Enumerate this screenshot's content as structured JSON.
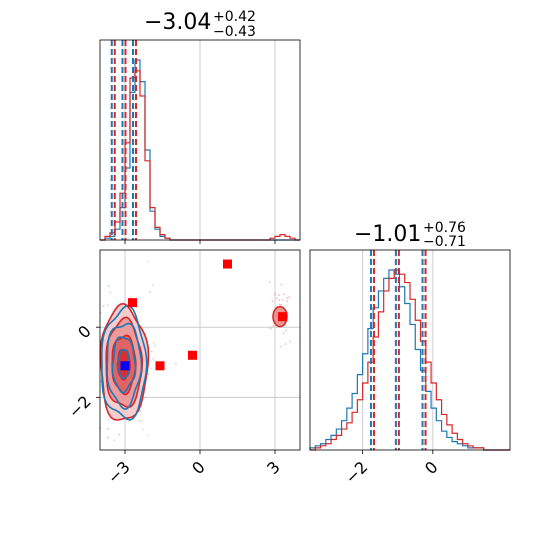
{
  "chart_data": {
    "type": "corner",
    "colors": {
      "series_a": "#1f77b4",
      "series_b": "#d62728",
      "grid": "#cccccc"
    },
    "series": [
      {
        "color": "#1f77b4"
      },
      {
        "color": "#d62728"
      }
    ],
    "grid": true,
    "parameters": [
      {
        "title": {
          "main": "−3.04",
          "sup": "+0.42",
          "sub": "−0.43"
        },
        "range": [
          -4.0,
          4.0
        ],
        "ticks": [
          -3,
          0,
          3
        ],
        "tick_labels": [
          "−3",
          "0",
          "3"
        ],
        "quantile_lines": [
          -3.47,
          -3.04,
          -2.62
        ],
        "hist": {
          "bin_edges_start": -4.0,
          "bin_width": 0.2,
          "series_a": [
            0,
            1,
            2,
            6,
            18,
            40,
            82,
            100,
            88,
            50,
            16,
            6,
            2,
            1,
            0,
            0,
            0,
            0,
            0,
            0,
            0,
            0,
            0,
            0,
            0,
            0,
            0,
            0,
            0,
            0,
            0,
            0,
            0,
            0,
            0,
            0,
            0,
            0,
            0,
            0
          ],
          "series_b": [
            0,
            2,
            4,
            10,
            26,
            54,
            90,
            94,
            80,
            44,
            18,
            7,
            3,
            1,
            0,
            0,
            0,
            0,
            0,
            0,
            0,
            0,
            0,
            0,
            0,
            0,
            0,
            0,
            0,
            0,
            0,
            0,
            0,
            0,
            1,
            2,
            3,
            2,
            1,
            0
          ]
        }
      },
      {
        "title": {
          "main": "−1.01",
          "sup": "+0.76",
          "sub": "−0.71"
        },
        "range": [
          -3.5,
          2.2
        ],
        "ticks": [
          -2,
          0
        ],
        "tick_labels": [
          "−2",
          "0"
        ],
        "quantile_lines": [
          -1.72,
          -1.01,
          -0.25
        ],
        "hist": {
          "bin_edges_start": -3.5,
          "bin_width": 0.15,
          "series_a": [
            1,
            2,
            3,
            5,
            7,
            10,
            14,
            20,
            27,
            36,
            46,
            58,
            68,
            76,
            82,
            86,
            84,
            78,
            70,
            60,
            48,
            38,
            28,
            20,
            14,
            9,
            6,
            4,
            3,
            2,
            1,
            1,
            1,
            0,
            0,
            0,
            0,
            0
          ],
          "series_b": [
            0,
            1,
            2,
            3,
            5,
            7,
            10,
            13,
            18,
            24,
            32,
            42,
            54,
            66,
            76,
            82,
            86,
            84,
            80,
            72,
            62,
            52,
            42,
            32,
            24,
            17,
            12,
            8,
            5,
            3,
            2,
            1,
            1,
            0,
            0,
            0,
            0,
            0
          ]
        }
      }
    ],
    "scatter_2d": {
      "x_param": 0,
      "y_param": 1,
      "x_range": [
        -4.0,
        4.0
      ],
      "y_range": [
        -3.5,
        2.2
      ],
      "x_ticks": [
        -3,
        0,
        3
      ],
      "x_tick_labels": [
        "−3",
        "0",
        "3"
      ],
      "y_ticks": [
        -2,
        0
      ],
      "y_tick_labels": [
        "−2",
        "0"
      ],
      "truth_blue": {
        "x": -3.0,
        "y": -1.1
      },
      "truth_red": [
        {
          "x": -3.0,
          "y": -1.1
        },
        {
          "x": -2.7,
          "y": 0.7
        },
        {
          "x": -1.6,
          "y": -1.1
        },
        {
          "x": -0.3,
          "y": -0.8
        },
        {
          "x": 1.1,
          "y": 1.8
        },
        {
          "x": 3.3,
          "y": 0.3
        }
      ],
      "contour_center": {
        "x": -3.05,
        "y": -1.05
      },
      "contour_sigma": {
        "x": 0.45,
        "y": 0.78
      },
      "secondary_blob": {
        "x": 3.2,
        "y": 0.3
      }
    }
  }
}
